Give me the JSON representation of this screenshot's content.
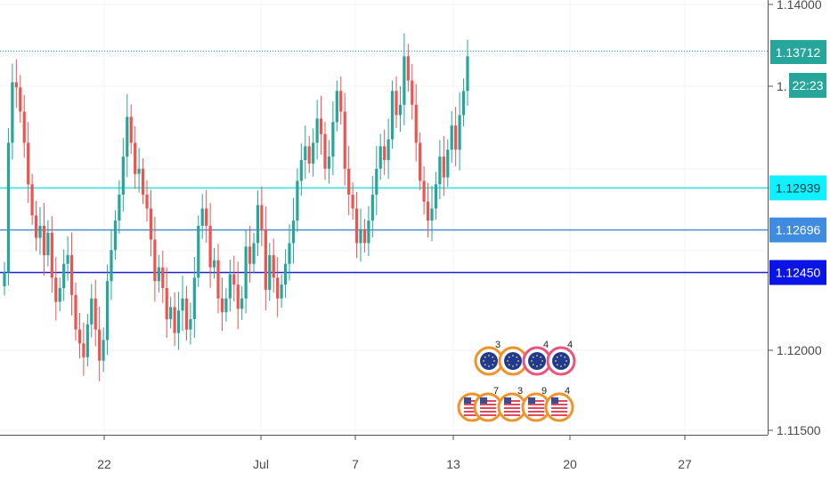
{
  "chart_data": {
    "type": "candlestick",
    "symbol_hint": "EUR/USD",
    "y_ticks": [
      "1.14000",
      "1.12000",
      "1.11500"
    ],
    "x_ticks": [
      "22",
      "Jul",
      "7",
      "13",
      "20",
      "27"
    ],
    "current_price": "1.13712",
    "countdown": "22:23",
    "levels": [
      {
        "name": "level-1",
        "value": "1.12939",
        "color": "#2fe0e0",
        "label_bg": "#10f0ff"
      },
      {
        "name": "level-2",
        "value": "1.12696",
        "color": "#4a90d0",
        "label_bg": "#3f8be0"
      },
      {
        "name": "level-3",
        "value": "1.12450",
        "color": "#1a23d6",
        "label_bg": "#0a14e6"
      }
    ],
    "events": {
      "eu": [
        "3",
        "",
        "4",
        "4"
      ],
      "us": [
        "",
        "7",
        "3",
        "9",
        "4"
      ]
    },
    "colors": {
      "up": "#26a69a",
      "down": "#ef5350",
      "price": "#26a69a"
    }
  }
}
